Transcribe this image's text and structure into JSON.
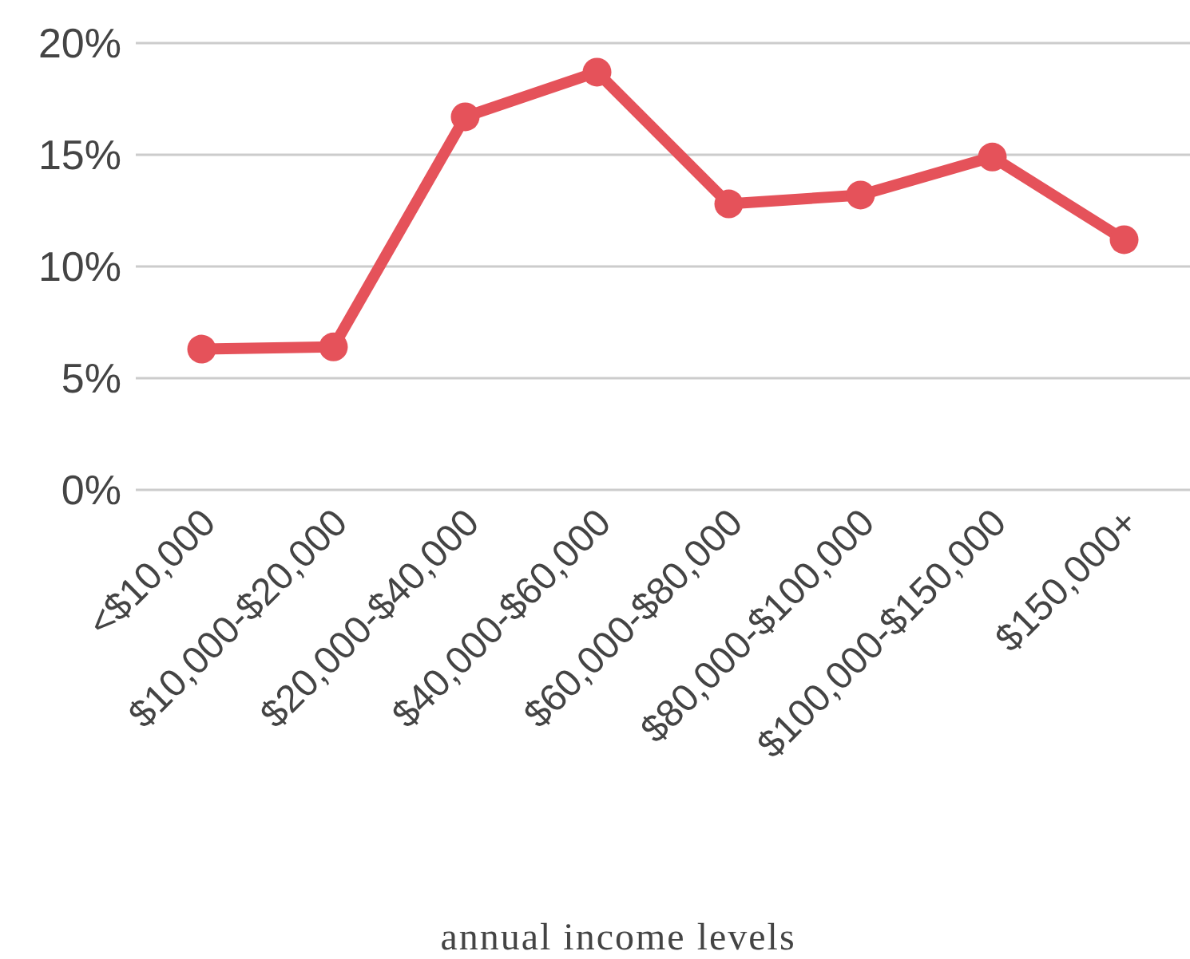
{
  "chart_data": {
    "type": "line",
    "xlabel": "annual income levels",
    "categories": [
      "<$10,000",
      "$10,000-$20,000",
      "$20,000-$40,000",
      "$40,000-$60,000",
      "$60,000-$80,000",
      "$80,000-$100,000",
      "$100,000-$150,000",
      "$150,000+"
    ],
    "series": [
      {
        "color": "#e5525a",
        "values": [
          6.3,
          6.4,
          16.7,
          18.7,
          12.8,
          13.2,
          14.9,
          11.2
        ]
      }
    ],
    "ylim": [
      0,
      20
    ],
    "yticks": [
      {
        "value": 0,
        "label": "0%"
      },
      {
        "value": 5,
        "label": "5%"
      },
      {
        "value": 10,
        "label": "10%"
      },
      {
        "value": 15,
        "label": "15%"
      },
      {
        "value": 20,
        "label": "20%"
      }
    ],
    "grid": "y",
    "marker": "circle",
    "line_style": "solid"
  }
}
